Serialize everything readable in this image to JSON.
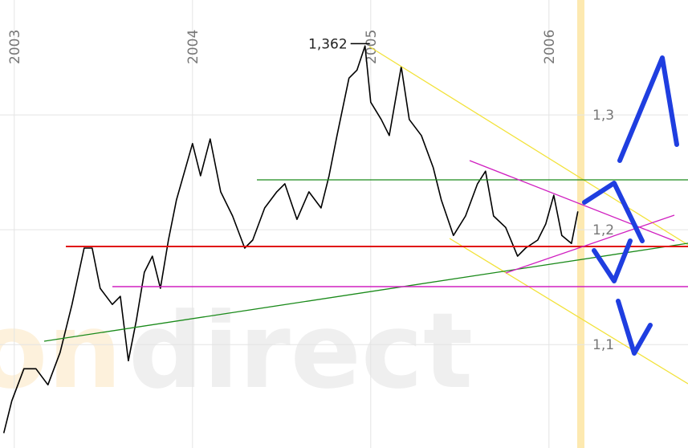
{
  "chart_data": {
    "type": "line",
    "x": [
      2002.941,
      2002.986,
      2003.054,
      2003.122,
      2003.189,
      2003.257,
      2003.324,
      2003.392,
      2003.437,
      2003.482,
      2003.55,
      2003.595,
      2003.64,
      2003.685,
      2003.73,
      2003.775,
      2003.82,
      2003.865,
      2003.91,
      2004.0,
      2004.045,
      2004.099,
      2004.158,
      2004.225,
      2004.293,
      2004.338,
      2004.405,
      2004.473,
      2004.518,
      2004.586,
      2004.653,
      2004.721,
      2004.766,
      2004.811,
      2004.878,
      2004.923,
      2004.968,
      2005.0,
      2005.059,
      2005.104,
      2005.171,
      2005.216,
      2005.284,
      2005.351,
      2005.396,
      2005.464,
      2005.532,
      2005.599,
      2005.644,
      2005.689,
      2005.757,
      2005.824,
      2005.869,
      2005.937,
      2005.982,
      2006.027,
      2006.072,
      2006.126,
      2006.162
    ],
    "values": [
      1.023,
      1.051,
      1.079,
      1.079,
      1.065,
      1.093,
      1.135,
      1.184,
      1.184,
      1.149,
      1.135,
      1.142,
      1.086,
      1.121,
      1.163,
      1.177,
      1.149,
      1.191,
      1.226,
      1.275,
      1.247,
      1.279,
      1.233,
      1.212,
      1.184,
      1.191,
      1.219,
      1.233,
      1.24,
      1.209,
      1.233,
      1.219,
      1.247,
      1.282,
      1.332,
      1.339,
      1.36,
      1.311,
      1.296,
      1.282,
      1.342,
      1.296,
      1.282,
      1.254,
      1.226,
      1.195,
      1.212,
      1.24,
      1.251,
      1.212,
      1.202,
      1.177,
      1.184,
      1.191,
      1.205,
      1.23,
      1.195,
      1.188,
      1.216
    ],
    "color": "#000000",
    "xlim": [
      2002.92,
      2006.78
    ],
    "xticks": [
      2003,
      2004,
      2005,
      2006
    ],
    "ylim": [
      1.01,
      1.4
    ],
    "yticks": [
      {
        "value": 1.1,
        "label": "1,1"
      },
      {
        "value": 1.2,
        "label": "1,2"
      },
      {
        "value": 1.3,
        "label": "1,3"
      }
    ],
    "grid": true,
    "max_label": {
      "value": 1.362,
      "label": "1,362"
    },
    "watermark_prefix": "on",
    "watermark": "direct"
  }
}
